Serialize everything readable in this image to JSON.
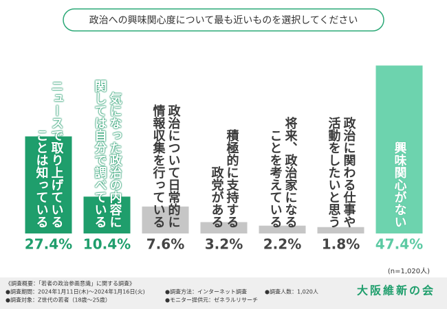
{
  "chart_data": {
    "type": "bar",
    "title": "政治への興味関心度について最も近いものを選択してください",
    "categories": [
      [
        "ニュースで取り上げている",
        "ことは知っている"
      ],
      [
        "気になった政治の内容に",
        "関しては自分で調べている"
      ],
      [
        "政治について日常的に",
        "情報収集を行っている"
      ],
      [
        "積極的に支持する",
        "政党がある"
      ],
      [
        "将来、政治家になる",
        "ことを考えている"
      ],
      [
        "政治に関わる仕事や",
        "活動をしたいと思う"
      ],
      [
        "興味関心がない"
      ]
    ],
    "values": [
      27.4,
      10.4,
      7.6,
      3.2,
      2.2,
      1.8,
      47.4
    ],
    "value_labels": [
      "27.4%",
      "10.4%",
      "7.6%",
      "3.2%",
      "2.2%",
      "1.8%",
      "47.4%"
    ],
    "colors": [
      "#1f9e6c",
      "#1f9e6c",
      "#c6c6c6",
      "#c6c6c6",
      "#c6c6c6",
      "#c6c6c6",
      "#6dd3ae"
    ],
    "label_colors": [
      "#ffffff",
      "#ffffff",
      "#3a3a3a",
      "#3a3a3a",
      "#3a3a3a",
      "#3a3a3a",
      "#ffffff"
    ],
    "value_label_colors": [
      "#1f9e6c",
      "#1f9e6c",
      "#444444",
      "#444444",
      "#444444",
      "#444444",
      "#5ccaa3"
    ],
    "ylim": [
      0,
      50
    ],
    "sample_note": "(n=1,020人)"
  },
  "footer": {
    "heading": "《調査概要：「若者の政治参画意識」に関する調査》",
    "period": "●調査期間：2024年1月11日(木)～2024年1月16日(火)",
    "target": "●調査対象：Z世代の若者（18歳～25歳）",
    "method": "●調査方法：インターネット調査",
    "provider": "●モニター提供元：ゼネラルリサーチ",
    "count": "●調査人数：1,020人",
    "logo": "大阪維新の会"
  }
}
